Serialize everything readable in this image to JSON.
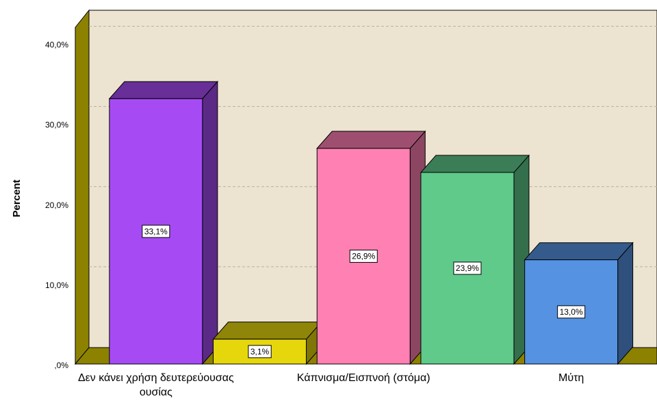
{
  "chart_data": {
    "type": "bar3d",
    "y_label": "Percent",
    "categories": [
      "Δεν κάνει χρήση δευτερεύουσας ουσίας",
      null,
      "Κάπνισμα/Εισπνοή (στόμα)",
      null,
      "Μύτη"
    ],
    "values": [
      33.1,
      3.1,
      26.9,
      23.9,
      13.0
    ],
    "value_labels": [
      "33,1%",
      "3,1%",
      "26,9%",
      "23,9%",
      "13,0%"
    ],
    "colors": [
      "#a64bf4",
      "#e6d70d",
      "#ff80b3",
      "#5fca8a",
      "#5592e2"
    ],
    "ylim": [
      0,
      42
    ],
    "yticks": [
      {
        "value": 0,
        "label": ",0%"
      },
      {
        "value": 10,
        "label": "10,0%"
      },
      {
        "value": 20,
        "label": "20,0%"
      },
      {
        "value": 30,
        "label": "30,0%"
      },
      {
        "value": 40,
        "label": "40,0%"
      }
    ],
    "grid": true
  }
}
